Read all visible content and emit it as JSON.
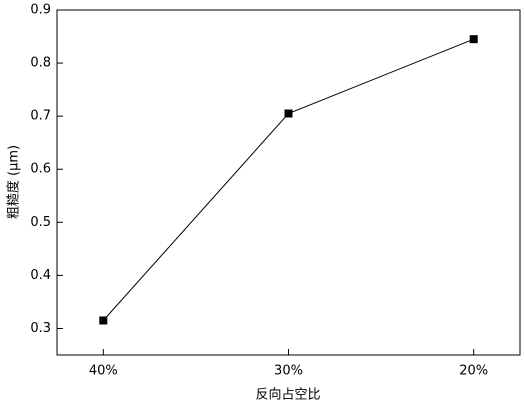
{
  "chart_data": {
    "type": "line",
    "categories": [
      "40%",
      "30%",
      "20%"
    ],
    "series": [
      {
        "name": "粗糙度",
        "color": "#000000",
        "values": [
          0.315,
          0.705,
          0.845
        ]
      }
    ],
    "ylim": [
      0.25,
      0.9
    ],
    "yticks": [
      0.3,
      0.4,
      0.5,
      0.6,
      0.7,
      0.8,
      0.9
    ],
    "xlabel": "反向占空比",
    "ylabel": "粗糙度 (μm)",
    "marker": "square"
  }
}
